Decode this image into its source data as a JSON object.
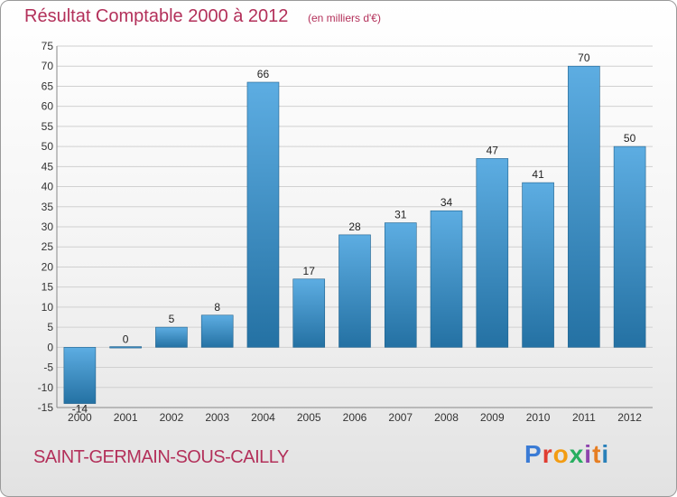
{
  "header": {
    "title": "Résultat Comptable 2000 à 2012",
    "subtitle": "(en milliers d'€)"
  },
  "footer": {
    "commune": "SAINT-GERMAIN-SOUS-CAILLY",
    "logo_text": "Proxiti",
    "logo_colors": [
      "#3a7bd5",
      "#e03c31",
      "#f39c12",
      "#27ae60",
      "#8e44ad",
      "#e67e22",
      "#2980b9"
    ]
  },
  "colors": {
    "bar_light": "#5dade2",
    "bar_dark": "#2471a3",
    "title": "#b3305a",
    "grid": "#d0d0d0"
  },
  "chart_data": {
    "type": "bar",
    "title": "Résultat Comptable 2000 à 2012",
    "subtitle": "(en milliers d'€)",
    "categories": [
      "2000",
      "2001",
      "2002",
      "2003",
      "2004",
      "2005",
      "2006",
      "2007",
      "2008",
      "2009",
      "2010",
      "2011",
      "2012"
    ],
    "values": [
      -14,
      0,
      5,
      8,
      66,
      17,
      28,
      31,
      34,
      47,
      41,
      70,
      50
    ],
    "value_labels": [
      "-14",
      "0",
      "5",
      "8",
      "66",
      "17",
      "28",
      "31",
      "34",
      "47",
      "41",
      "70",
      "50"
    ],
    "ylim": [
      -15,
      75
    ],
    "yticks": [
      -15,
      -10,
      -5,
      0,
      5,
      10,
      15,
      20,
      25,
      30,
      35,
      40,
      45,
      50,
      55,
      60,
      65,
      70,
      75
    ],
    "grid": true,
    "legend": "none"
  }
}
